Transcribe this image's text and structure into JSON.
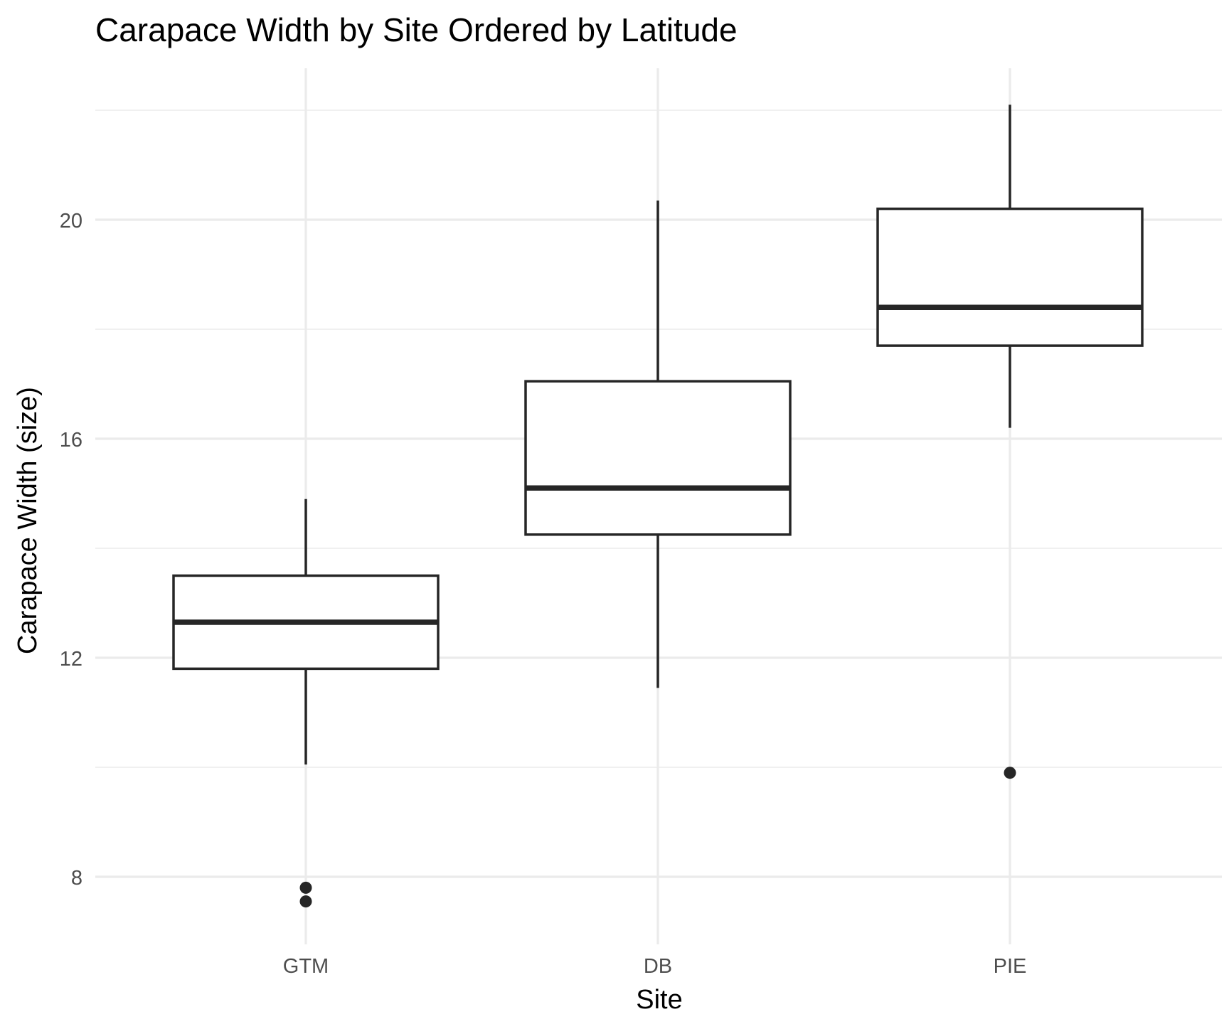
{
  "chart_data": {
    "type": "boxplot",
    "title": "Carapace Width by Site Ordered by Latitude",
    "xlabel": "Site",
    "ylabel": "Carapace Width (size)",
    "categories": [
      "GTM",
      "DB",
      "PIE"
    ],
    "ylim": [
      6.8,
      22.5
    ],
    "y_ticks": [
      8,
      12,
      16,
      20
    ],
    "y_tick_labels": [
      "8",
      "12",
      "16",
      "20"
    ],
    "y_minor_ticks": [
      10,
      14,
      18,
      22
    ],
    "grid": true,
    "legend": "none",
    "boxes": [
      {
        "category": "GTM",
        "whisker_low": 10.05,
        "q1": 11.8,
        "median": 12.65,
        "q3": 13.5,
        "whisker_high": 14.9,
        "outliers": [
          7.8,
          7.55
        ]
      },
      {
        "category": "DB",
        "whisker_low": 11.45,
        "q1": 14.25,
        "median": 15.1,
        "q3": 17.05,
        "whisker_high": 20.35,
        "outliers": []
      },
      {
        "category": "PIE",
        "whisker_low": 16.2,
        "q1": 17.7,
        "median": 18.4,
        "q3": 20.2,
        "whisker_high": 22.1,
        "outliers": [
          9.9
        ]
      }
    ]
  }
}
